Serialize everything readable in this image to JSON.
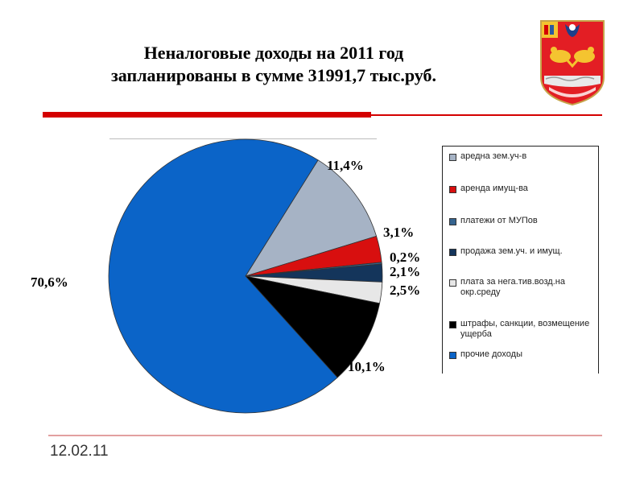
{
  "slide": {
    "title_line1": "Неналоговые доходы на 2011 год",
    "title_line2": "запланированы в сумме 31991,7 тыс.руб.",
    "date": "12.02.11"
  },
  "colors": {
    "accent_red": "#d40000"
  },
  "chart_data": {
    "type": "pie",
    "title": "",
    "legend_position": "right",
    "slices": [
      {
        "name": "аредна зем.уч-в",
        "value": 11.4,
        "label": "11,4%",
        "color": "#a6b3c5"
      },
      {
        "name": "аренда имущ-ва",
        "value": 3.1,
        "label": "3,1%",
        "color": "#d80f0f"
      },
      {
        "name": "платежи от МУПов",
        "value": 0.2,
        "label": "0,2%",
        "color": "#35648f"
      },
      {
        "name": "продажа зем.уч. и имущ.",
        "value": 2.1,
        "label": "2,1%",
        "color": "#14355b"
      },
      {
        "name": "плата за нега.тив.возд.на окр.среду",
        "value": 2.5,
        "label": "2,5%",
        "color": "#e7e7e7"
      },
      {
        "name": "штрафы, санкции, возмещение ущерба",
        "value": 10.1,
        "label": "10,1%",
        "color": "#000000"
      },
      {
        "name": "прочие доходы",
        "value": 70.6,
        "label": "70,6%",
        "color": "#0b64c8"
      }
    ]
  }
}
